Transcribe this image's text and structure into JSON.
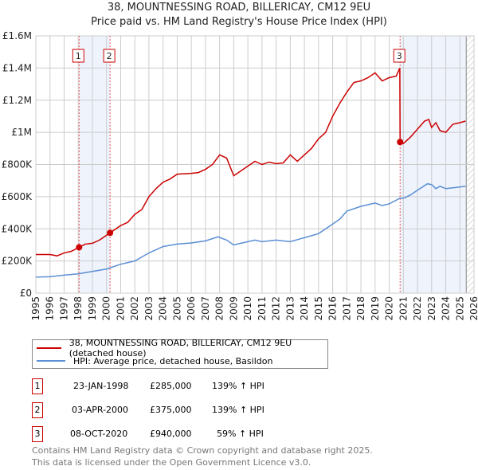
{
  "chart_data": {
    "type": "line",
    "title": "38, MOUNTNESSING ROAD, BILLERICAY, CM12 9EU",
    "subtitle": "Price paid vs. HM Land Registry's House Price Index (HPI)",
    "xlim": [
      1995,
      2026
    ],
    "ylim": [
      0,
      1600000
    ],
    "yticks": [
      {
        "v": 0,
        "l": "£0"
      },
      {
        "v": 200000,
        "l": "£200K"
      },
      {
        "v": 400000,
        "l": "£400K"
      },
      {
        "v": 600000,
        "l": "£600K"
      },
      {
        "v": 800000,
        "l": "£800K"
      },
      {
        "v": 1000000,
        "l": "£1M"
      },
      {
        "v": 1200000,
        "l": "£1.2M"
      },
      {
        "v": 1400000,
        "l": "£1.4M"
      },
      {
        "v": 1600000,
        "l": "£1.6M"
      }
    ],
    "xticks": [
      1995,
      1996,
      1997,
      1998,
      1999,
      2000,
      2001,
      2002,
      2003,
      2004,
      2005,
      2006,
      2007,
      2008,
      2009,
      2010,
      2011,
      2012,
      2013,
      2014,
      2015,
      2016,
      2017,
      2018,
      2019,
      2020,
      2021,
      2022,
      2023,
      2024,
      2025,
      2026
    ],
    "grid": true,
    "series": [
      {
        "name": "38, MOUNTNESSING ROAD, BILLERICAY, CM12 9EU (detached house)",
        "color": "#cc0000",
        "x": [
          1995,
          1996,
          1996.5,
          1997,
          1997.5,
          1998.06,
          1998.5,
          1999,
          1999.5,
          2000.25,
          2001,
          2001.5,
          2002,
          2002.5,
          2003,
          2003.5,
          2004,
          2004.5,
          2005,
          2006,
          2006.5,
          2007,
          2007.5,
          2008,
          2008.5,
          2009,
          2009.5,
          2010,
          2010.5,
          2011,
          2011.5,
          2012,
          2012.5,
          2013,
          2013.5,
          2014,
          2014.5,
          2015,
          2015.5,
          2016,
          2016.5,
          2017,
          2017.5,
          2018,
          2018.5,
          2019,
          2019.5,
          2020,
          2020.5,
          2020.75,
          2020.77,
          2021,
          2021.5,
          2022,
          2022.5,
          2022.8,
          2023,
          2023.3,
          2023.6,
          2024,
          2024.5,
          2025,
          2025.4
        ],
        "y": [
          240000,
          240000,
          232000,
          250000,
          260000,
          285000,
          305000,
          310000,
          330000,
          375000,
          420000,
          440000,
          490000,
          520000,
          600000,
          650000,
          690000,
          710000,
          740000,
          745000,
          750000,
          770000,
          800000,
          860000,
          840000,
          730000,
          760000,
          790000,
          820000,
          800000,
          815000,
          805000,
          810000,
          860000,
          820000,
          860000,
          900000,
          960000,
          1000000,
          1100000,
          1180000,
          1250000,
          1310000,
          1320000,
          1340000,
          1370000,
          1320000,
          1340000,
          1350000,
          1400000,
          940000,
          930000,
          970000,
          1020000,
          1070000,
          1080000,
          1030000,
          1060000,
          1010000,
          1000000,
          1050000,
          1060000,
          1070000
        ]
      },
      {
        "name": "HPI: Average price, detached house, Basildon",
        "color": "#5b8fd4",
        "x": [
          1995,
          1996,
          1997,
          1998,
          1999,
          2000,
          2001,
          2002,
          2003,
          2004,
          2005,
          2006,
          2007,
          2007.9,
          2008.5,
          2009,
          2009.5,
          2010,
          2010.5,
          2011,
          2012,
          2013,
          2014,
          2015,
          2016,
          2016.5,
          2017,
          2018,
          2019,
          2019.5,
          2020,
          2020.75,
          2021,
          2021.5,
          2022,
          2022.7,
          2023,
          2023.3,
          2023.6,
          2024,
          2024.5,
          2025,
          2025.4
        ],
        "y": [
          100000,
          102000,
          112000,
          120000,
          135000,
          150000,
          180000,
          200000,
          250000,
          290000,
          305000,
          312000,
          325000,
          350000,
          330000,
          300000,
          310000,
          320000,
          330000,
          320000,
          330000,
          320000,
          345000,
          370000,
          430000,
          460000,
          510000,
          540000,
          560000,
          545000,
          555000,
          590000,
          590000,
          610000,
          640000,
          680000,
          675000,
          650000,
          665000,
          650000,
          655000,
          660000,
          665000
        ]
      }
    ],
    "sales": [
      {
        "n": "1",
        "x": 1998.06,
        "y": 285000,
        "date": "23-JAN-1998",
        "price": "£285,000",
        "hpi": "139% ↑ HPI"
      },
      {
        "n": "2",
        "x": 2000.25,
        "y": 375000,
        "date": "03-APR-2000",
        "price": "£375,000",
        "hpi": "139% ↑ HPI"
      },
      {
        "n": "3",
        "x": 2020.77,
        "y": 940000,
        "date": "08-OCT-2020",
        "price": "£940,000",
        "hpi": "59% ↑ HPI"
      }
    ],
    "footer": [
      "Contains HM Land Registry data © Crown copyright and database right 2025.",
      "This data is licensed under the Open Government Licence v3.0."
    ]
  }
}
